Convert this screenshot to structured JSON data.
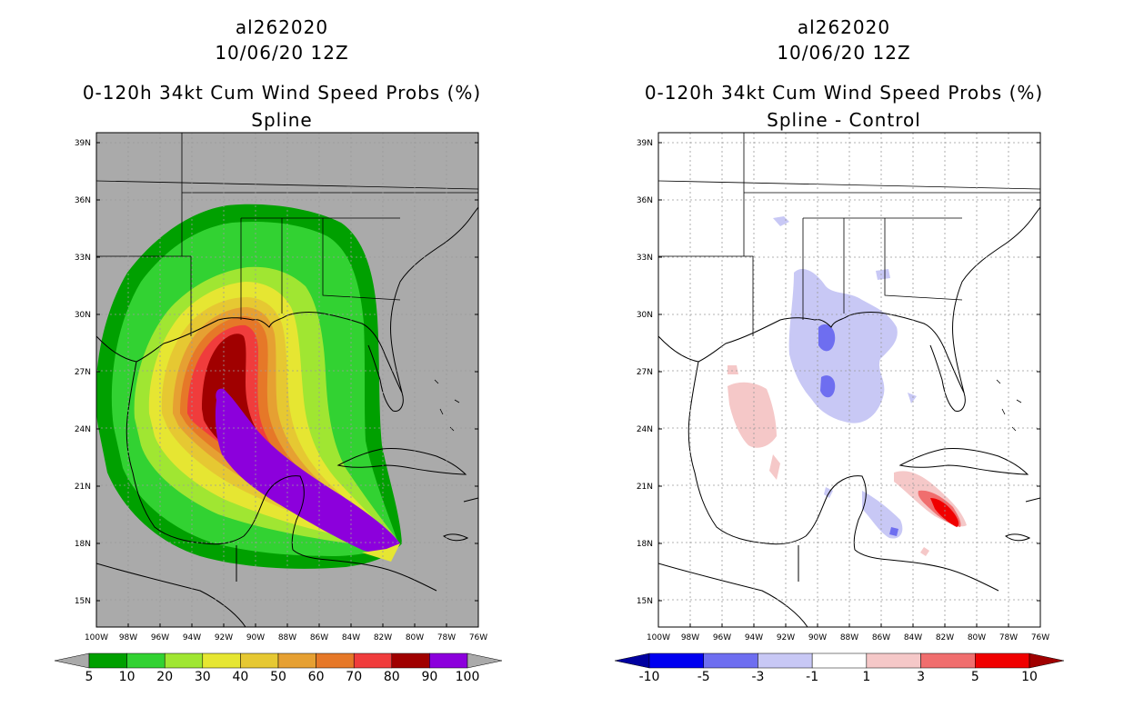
{
  "left": {
    "storm_id": "al262020",
    "datetime": "10/06/20 12Z",
    "product": "0-120h 34kt Cum Wind Speed Probs (%)",
    "subtitle": "Spline",
    "colorbar": {
      "labels": [
        "5",
        "10",
        "20",
        "30",
        "40",
        "50",
        "60",
        "70",
        "80",
        "90",
        "100"
      ],
      "colors": [
        "#00a000",
        "#32d232",
        "#a0e632",
        "#e6e632",
        "#e6c832",
        "#e6a032",
        "#e67828",
        "#f03c3c",
        "#a00000",
        "#8c00dc"
      ],
      "under_color": "#aaaaaa",
      "over_color": "#aaaaaa"
    },
    "background_color": "#aaaaaa"
  },
  "right": {
    "storm_id": "al262020",
    "datetime": "10/06/20 12Z",
    "product": "0-120h 34kt Cum Wind Speed Probs (%)",
    "subtitle": "Spline - Control",
    "colorbar": {
      "labels": [
        "-10",
        "-5",
        "-3",
        "-1",
        "1",
        "3",
        "5",
        "10"
      ],
      "colors": [
        "#0000f0",
        "#6e6ef0",
        "#c8c8f5",
        "#ffffff",
        "#f5c8c8",
        "#f06e6e",
        "#f00000"
      ],
      "under_color": "#0000a0",
      "over_color": "#a00000"
    },
    "background_color": "#ffffff"
  },
  "axes": {
    "lat_labels": [
      "39N",
      "36N",
      "33N",
      "30N",
      "27N",
      "24N",
      "21N",
      "18N",
      "15N"
    ],
    "lon_labels": [
      "100W",
      "98W",
      "96W",
      "94W",
      "92W",
      "90W",
      "88W",
      "86W",
      "84W",
      "82W",
      "80W",
      "78W",
      "76W"
    ]
  }
}
